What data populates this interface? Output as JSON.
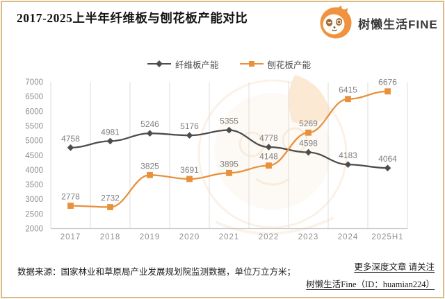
{
  "header": {
    "title": "2017-2025上半年纤维板与刨花板产能对比",
    "brand_name": "树懒生活FINE"
  },
  "chart_data": {
    "type": "line",
    "title": "2017-2025上半年纤维板与刨花板产能对比",
    "categories": [
      "2017",
      "2018",
      "2019",
      "2020",
      "2021",
      "2022",
      "2023",
      "2024",
      "2025H1"
    ],
    "series": [
      {
        "name": "纤维板产能",
        "color": "#4D4D4D",
        "marker": "diamond",
        "values": [
          4758,
          4981,
          5246,
          5176,
          5355,
          4778,
          4598,
          4183,
          4064
        ]
      },
      {
        "name": "刨花板产能",
        "color": "#E8913C",
        "marker": "square",
        "values": [
          2778,
          2732,
          3825,
          3691,
          3895,
          4148,
          5269,
          6415,
          6676
        ]
      }
    ],
    "ylim": [
      2000,
      7000
    ],
    "yticks": [
      7000,
      6500,
      6000,
      5500,
      5000,
      4500,
      4000,
      3500,
      3000,
      2500,
      2000
    ],
    "grid": "vertical-only",
    "legend_position": "top",
    "data_labels_shown": true,
    "unit_note": "单位万立方米"
  },
  "footer": {
    "source": "数据来源：国家林业和草原局产业发展规划院监测数据，单位万立方米；",
    "more_link": "更多深度文章 请关注",
    "account": "树懒生活Fine（ID：huamian224）"
  },
  "colors": {
    "series_dark": "#4D4D4D",
    "series_orange": "#E8913C",
    "border_frame": "#D9BC82",
    "gridline": "#DDDDDD",
    "axis_line": "#C8C8C8",
    "tick_label": "#8E8E8E",
    "data_label": "#7F7F7F",
    "logo_orange": "#F0923F"
  }
}
